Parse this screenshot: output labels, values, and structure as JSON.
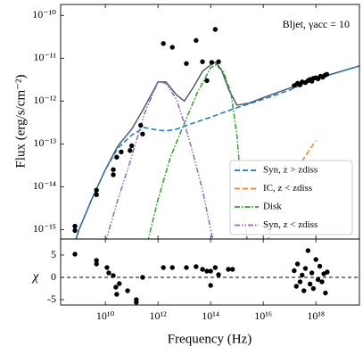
{
  "chart_data": [
    {
      "type": "line",
      "annotation": "Bljet, γacc = 10",
      "ylabel": "Flux (erg/s/cm⁻²)",
      "xlog": true,
      "ylog": true,
      "legend": "lower right",
      "xlim": [
        200000000.0,
        4.5e+19
      ],
      "ylim": [
        6e-16,
        1.8e-10
      ],
      "yticks": [
        {
          "value": 1e-10,
          "label": "10⁻¹⁰"
        },
        {
          "value": 1e-11,
          "label": "10⁻¹¹"
        },
        {
          "value": 1e-12,
          "label": "10⁻¹²"
        },
        {
          "value": 1e-13,
          "label": "10⁻¹³"
        },
        {
          "value": 1e-14,
          "label": "10⁻¹⁴"
        },
        {
          "value": 1e-15,
          "label": "10⁻¹⁵"
        }
      ],
      "series": [
        {
          "color": "#4d5d6d",
          "linestyle": "solid",
          "x": [
            700000000.0,
            1000000000.0,
            3000000000.0,
            10000000000.0,
            30000000000.0,
            100000000000.0,
            300000000000.0,
            1000000000000.0,
            2000000000000.0,
            5000000000000.0,
            10000000000000.0,
            20000000000000.0,
            50000000000000.0,
            100000000000000.0,
            150000000000000.0,
            250000000000000.0,
            500000000000000.0,
            1000000000000000.0,
            3000000000000000.0,
            1e+16,
            1e+17,
            1e+18,
            4.5e+19
          ],
          "values": [
            5e-16,
            1e-15,
            5e-15,
            2.5e-14,
            9e-14,
            2.2e-13,
            7e-13,
            2.8e-12,
            2.8e-12,
            1.4e-12,
            1e-12,
            1.9e-12,
            5e-12,
            7e-12,
            8e-12,
            5.6e-12,
            1.8e-12,
            8e-13,
            9e-13,
            1.2e-12,
            2e-12,
            3.3e-12,
            6.6e-12
          ]
        },
        {
          "name": "Syn, z > zdiss",
          "color": "#1f77b4",
          "linestyle": "dashed",
          "x": [
            700000000.0,
            1000000000.0,
            3000000000.0,
            10000000000.0,
            30000000000.0,
            100000000000.0,
            300000000000.0,
            1000000000000.0,
            2000000000000.0,
            5000000000000.0,
            10000000000000.0,
            100000000000000.0,
            1000000000000000.0,
            1e+16,
            1e+17,
            1e+18,
            4.5e+19
          ],
          "values": [
            5e-16,
            1e-15,
            5e-15,
            2.5e-14,
            8e-14,
            1.6e-13,
            2.4e-13,
            2.1e-13,
            2e-13,
            2.2e-13,
            2.6e-13,
            4.2e-13,
            7e-13,
            1.1e-12,
            1.8e-12,
            3.3e-12,
            6.6e-12
          ]
        },
        {
          "name": "IC, z < zdiss",
          "color": "#ff7f0e",
          "linestyle": "dashed",
          "x": [
            1.4e+16,
            3e+16,
            6e+16,
            1.3e+17,
            3e+17,
            1e+18
          ],
          "values": [
            5e-16,
            2e-15,
            6e-15,
            1.5e-14,
            4e-14,
            1.2e-13
          ]
        },
        {
          "name": "Disk",
          "color": "#2ca02c",
          "linestyle": "dashdot",
          "x": [
            400000000000.0,
            1000000000000.0,
            3000000000000.0,
            10000000000000.0,
            30000000000000.0,
            100000000000000.0,
            150000000000000.0,
            300000000000000.0,
            600000000000000.0,
            1000000000000000.0,
            1600000000000000.0,
            2500000000000000.0
          ],
          "values": [
            5e-16,
            5e-15,
            5e-14,
            3e-13,
            1.5e-12,
            6e-12,
            7e-12,
            5e-12,
            1.5e-12,
            1.5e-13,
            5e-15,
            5e-16
          ]
        },
        {
          "name": "Syn, z < zdiss",
          "color": "#9467bd",
          "linestyle": "dashdotdot",
          "x": [
            10000000000.0,
            30000000000.0,
            100000000000.0,
            300000000000.0,
            1000000000000.0,
            2000000000000.0,
            5000000000000.0,
            10000000000000.0,
            20000000000000.0,
            50000000000000.0,
            100000000000000.0,
            130000000000000.0
          ],
          "values": [
            5e-16,
            5e-15,
            5e-14,
            5e-13,
            2.8e-12,
            2.6e-12,
            1.1e-12,
            3e-13,
            7e-14,
            8e-15,
            1e-15,
            5e-16
          ]
        },
        {
          "color": "#e377c2",
          "linestyle": "thick",
          "x": [
            2e+17,
            5e+17,
            1e+18,
            2.5e+18
          ],
          "values": [
            2.3e-12,
            2.9e-12,
            3.4e-12,
            4.1e-12
          ]
        }
      ],
      "points": {
        "color": "#000000",
        "x": [
          700000000.0,
          700000000.0,
          4600000000.0,
          4600000000.0,
          20000000000.0,
          20000000000.0,
          27000000000.0,
          40000000000.0,
          87000000000.0,
          100000000000.0,
          220000000000.0,
          260000000000.0,
          1600000000000.0,
          3500000000000.0,
          12000000000000.0,
          28000000000000.0,
          49000000000000.0,
          72000000000000.0,
          110000000000000.0,
          150000000000000.0,
          200000000000000.0,
          1.5e+17,
          2e+17,
          2.5e+17,
          3e+17,
          4e+17,
          5e+17,
          6e+17,
          7e+17,
          8e+17,
          1e+18,
          1.2e+18,
          1.5e+18,
          1.8e+18,
          2.2e+18,
          2.6e+18
        ],
        "values": [
          1.2e-15,
          9.5e-16,
          8.3e-15,
          6.5e-15,
          2.5e-14,
          1.9e-14,
          4.9e-14,
          6.5e-14,
          7e-14,
          9e-14,
          2.7e-13,
          1.7e-13,
          2.2e-11,
          1.8e-11,
          7.5e-12,
          2.6e-11,
          8.3e-12,
          3e-12,
          8e-12,
          4.7e-11,
          8.3e-12,
          2.3e-12,
          2.6e-12,
          2.4e-12,
          2.8e-12,
          2.7e-12,
          3e-12,
          3.2e-12,
          2.9e-12,
          3.4e-12,
          3.5e-12,
          3.3e-12,
          3.8e-12,
          3.6e-12,
          4e-12,
          4.2e-12
        ]
      }
    },
    {
      "type": "scatter",
      "xlabel": "Frequency (Hz)",
      "ylabel": "χ",
      "xlog": true,
      "xlim": [
        200000000.0,
        4.5e+19
      ],
      "ylim": [
        -6.2,
        8.6
      ],
      "xticks": [
        {
          "value": 10000000000.0,
          "label": "10¹⁰"
        },
        {
          "value": 1000000000000.0,
          "label": "10¹²"
        },
        {
          "value": 100000000000000.0,
          "label": "10¹⁴"
        },
        {
          "value": 1e+16,
          "label": "10¹⁶"
        },
        {
          "value": 1e+18,
          "label": "10¹⁸"
        }
      ],
      "yticks": [
        -5,
        0,
        5
      ],
      "color": "#000000",
      "x": [
        700000000.0,
        4600000000.0,
        4600000000.0,
        11500000000.0,
        13500000000.0,
        20000000000.0,
        25000000000.0,
        27000000000.0,
        34000000000.0,
        70000000000.0,
        150000000000.0,
        150000000000.0,
        260000000000.0,
        1600000000000.0,
        3500000000000.0,
        12000000000000.0,
        28000000000000.0,
        49000000000000.0,
        72000000000000.0,
        100000000000000.0,
        100000000000000.0,
        150000000000000.0,
        200000000000000.0,
        470000000000000.0,
        680000000000000.0,
        1.5e+17,
        1.8e+17,
        2e+17,
        2.5e+17,
        3e+17,
        3.5e+17,
        4e+17,
        5e+17,
        6e+17,
        7e+17,
        8e+17,
        1e+18,
        1.2e+18,
        1.4e+18,
        1.7e+18,
        2e+18,
        2.3e+18,
        2.7e+18
      ],
      "values": [
        5.2,
        3.8,
        3.0,
        2.2,
        1.0,
        0.4,
        -2.2,
        -3.8,
        -1.4,
        -3.0,
        -5.0,
        -5.6,
        0,
        2.2,
        2.2,
        2.2,
        2.4,
        1.8,
        1.4,
        1.4,
        -1.8,
        2.2,
        0.6,
        1.8,
        1.8,
        1.5,
        -2,
        3,
        -1,
        0.5,
        -3,
        2,
        6,
        -1.5,
        1,
        -2.5,
        4,
        -0.5,
        2.5,
        -1,
        0.8,
        -3.5,
        1.2
      ]
    }
  ]
}
